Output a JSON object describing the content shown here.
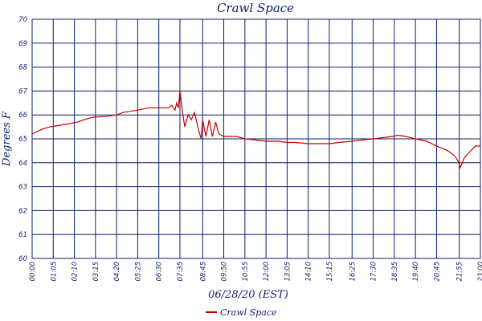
{
  "chart_data": {
    "type": "line",
    "title": "Crawl Space",
    "xlabel": "06/28/20 (EST)",
    "ylabel": "Degrees F",
    "ylim": [
      60,
      70
    ],
    "yticks": [
      60,
      61,
      62,
      63,
      64,
      65,
      66,
      67,
      68,
      69,
      70
    ],
    "xticks": [
      "00:00",
      "01:05",
      "02:10",
      "03:15",
      "04:20",
      "05:25",
      "06:30",
      "07:35",
      "08:45",
      "09:50",
      "10:55",
      "12:00",
      "13:05",
      "14:10",
      "15:15",
      "16:25",
      "17:30",
      "18:35",
      "19:40",
      "20:45",
      "21:55",
      "23:00"
    ],
    "grid": true,
    "legend_position": "bottom-center",
    "colors": {
      "line": "#c00000",
      "axis": "#0b1e6e",
      "grid": "#0b1e6e"
    },
    "series": [
      {
        "name": "Crawl Space",
        "points": [
          [
            "00:00",
            65.2
          ],
          [
            "00:15",
            65.3
          ],
          [
            "00:30",
            65.4
          ],
          [
            "00:55",
            65.5
          ],
          [
            "01:40",
            65.6
          ],
          [
            "02:20",
            65.7
          ],
          [
            "02:40",
            65.8
          ],
          [
            "03:05",
            65.9
          ],
          [
            "03:55",
            65.95
          ],
          [
            "04:20",
            66.0
          ],
          [
            "04:40",
            66.1
          ],
          [
            "05:25",
            66.2
          ],
          [
            "06:00",
            66.3
          ],
          [
            "06:35",
            66.3
          ],
          [
            "07:00",
            66.3
          ],
          [
            "07:10",
            66.4
          ],
          [
            "07:20",
            66.2
          ],
          [
            "07:25",
            66.5
          ],
          [
            "07:30",
            66.3
          ],
          [
            "07:35",
            67.0
          ],
          [
            "07:42",
            66.2
          ],
          [
            "07:50",
            65.5
          ],
          [
            "08:00",
            66.0
          ],
          [
            "08:10",
            65.8
          ],
          [
            "08:20",
            66.1
          ],
          [
            "08:30",
            65.5
          ],
          [
            "08:40",
            65.0
          ],
          [
            "08:45",
            65.8
          ],
          [
            "08:55",
            65.1
          ],
          [
            "09:05",
            65.8
          ],
          [
            "09:15",
            65.1
          ],
          [
            "09:25",
            65.7
          ],
          [
            "09:35",
            65.2
          ],
          [
            "09:50",
            65.1
          ],
          [
            "10:30",
            65.1
          ],
          [
            "10:55",
            65.0
          ],
          [
            "11:30",
            64.95
          ],
          [
            "12:00",
            64.9
          ],
          [
            "12:40",
            64.9
          ],
          [
            "13:05",
            64.85
          ],
          [
            "13:30",
            64.85
          ],
          [
            "14:10",
            64.8
          ],
          [
            "15:15",
            64.8
          ],
          [
            "15:45",
            64.85
          ],
          [
            "16:25",
            64.9
          ],
          [
            "16:55",
            64.95
          ],
          [
            "17:30",
            65.0
          ],
          [
            "18:00",
            65.05
          ],
          [
            "18:30",
            65.1
          ],
          [
            "18:45",
            65.15
          ],
          [
            "19:10",
            65.1
          ],
          [
            "19:40",
            65.0
          ],
          [
            "20:15",
            64.9
          ],
          [
            "20:45",
            64.7
          ],
          [
            "21:20",
            64.5
          ],
          [
            "21:40",
            64.3
          ],
          [
            "21:50",
            64.1
          ],
          [
            "21:58",
            63.8
          ],
          [
            "22:10",
            64.2
          ],
          [
            "22:30",
            64.5
          ],
          [
            "22:45",
            64.7
          ],
          [
            "23:00",
            64.7
          ]
        ]
      }
    ]
  }
}
